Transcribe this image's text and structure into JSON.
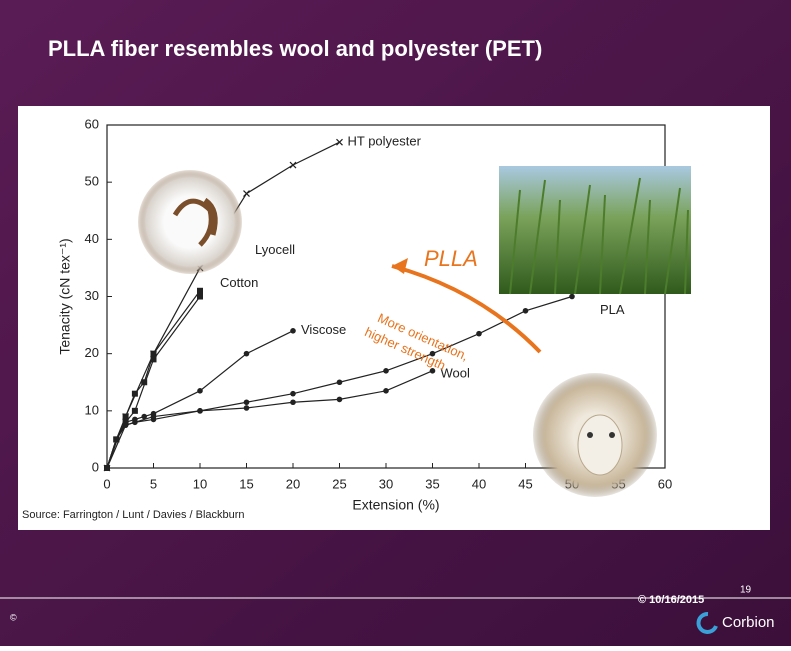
{
  "slide": {
    "title": "PLLA  fiber resembles wool and polyester (PET)",
    "date": "© 10/16/2015",
    "page": "19",
    "brand": "Corbion",
    "copyright": "©"
  },
  "chart_data": {
    "type": "line",
    "x_label": "Extension (%)",
    "y_label": "Tenacity (cN tex⁻¹)",
    "source": "Source: Farrington / Lunt / Davies / Blackburn",
    "annotations": [
      "PLLA",
      "More orientation,",
      "higher strength"
    ],
    "xlim": [
      0,
      60
    ],
    "ylim": [
      0,
      60
    ],
    "xticks": [
      0,
      5,
      10,
      15,
      20,
      25,
      30,
      35,
      40,
      45,
      50,
      55,
      60
    ],
    "yticks": [
      0,
      10,
      20,
      30,
      40,
      50,
      60
    ],
    "grid": false,
    "series": [
      {
        "name": "HT polyester",
        "color": "#222222",
        "marker": "x",
        "x": [
          0,
          2,
          5,
          10,
          15,
          20,
          25
        ],
        "values": [
          0,
          9,
          20,
          35,
          48,
          53,
          57
        ]
      },
      {
        "name": "Lyocell",
        "color": "#222222",
        "marker": "square",
        "x": [
          0,
          1,
          2,
          3,
          4,
          5,
          10
        ],
        "values": [
          0,
          5,
          9,
          13,
          15,
          20,
          31
        ]
      },
      {
        "name": "Cotton",
        "color": "#222222",
        "marker": "square",
        "x": [
          0,
          1,
          2,
          3,
          5,
          10
        ],
        "values": [
          0,
          5,
          8,
          10,
          19,
          30
        ]
      },
      {
        "name": "Viscose",
        "color": "#222222",
        "marker": "circle",
        "x": [
          0,
          1,
          2,
          3,
          4,
          5,
          10,
          15,
          20
        ],
        "values": [
          0,
          5,
          8,
          8.5,
          9,
          9.5,
          13.5,
          20,
          24
        ]
      },
      {
        "name": "Wool",
        "color": "#222222",
        "marker": "circle",
        "x": [
          0,
          1,
          2,
          3,
          5,
          10,
          15,
          20,
          25,
          30,
          35
        ],
        "values": [
          0,
          5,
          7.5,
          8,
          8.5,
          10,
          10.5,
          11.5,
          12,
          13.5,
          17
        ]
      },
      {
        "name": "PLA",
        "color": "#222222",
        "marker": "circle",
        "x": [
          0,
          2,
          5,
          10,
          15,
          20,
          25,
          30,
          35,
          40,
          45,
          50
        ],
        "values": [
          0,
          7.5,
          9,
          10,
          11.5,
          13,
          15,
          17,
          20,
          23.5,
          27.5,
          30
        ]
      }
    ]
  }
}
